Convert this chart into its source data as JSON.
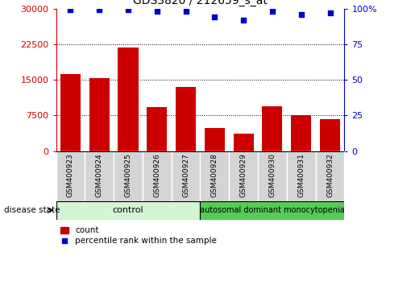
{
  "title": "GDS3820 / 212659_s_at",
  "samples": [
    "GSM400923",
    "GSM400924",
    "GSM400925",
    "GSM400926",
    "GSM400927",
    "GSM400928",
    "GSM400929",
    "GSM400930",
    "GSM400931",
    "GSM400932"
  ],
  "counts": [
    16200,
    15400,
    21800,
    9200,
    13500,
    4800,
    3700,
    9500,
    7600,
    6700
  ],
  "percentile_ranks": [
    99,
    99,
    99,
    98,
    98,
    94,
    92,
    98,
    96,
    97
  ],
  "bar_color": "#cc0000",
  "dot_color": "#0000cc",
  "left_ylim": [
    0,
    30000
  ],
  "left_yticks": [
    0,
    7500,
    15000,
    22500,
    30000
  ],
  "right_ylim": [
    0,
    100
  ],
  "right_yticks": [
    0,
    25,
    50,
    75,
    100
  ],
  "control_samples": 5,
  "control_label": "control",
  "disease_label": "autosomal dominant monocytopenia",
  "disease_state_label": "disease state",
  "legend_count_label": "count",
  "legend_percentile_label": "percentile rank within the sample",
  "control_bg_light": "#d4f5d4",
  "control_bg": "#c0eec0",
  "disease_bg": "#55cc55",
  "sample_bg": "#d4d4d4",
  "right_label_color": "#0000cc",
  "left_label_color": "#cc0000"
}
